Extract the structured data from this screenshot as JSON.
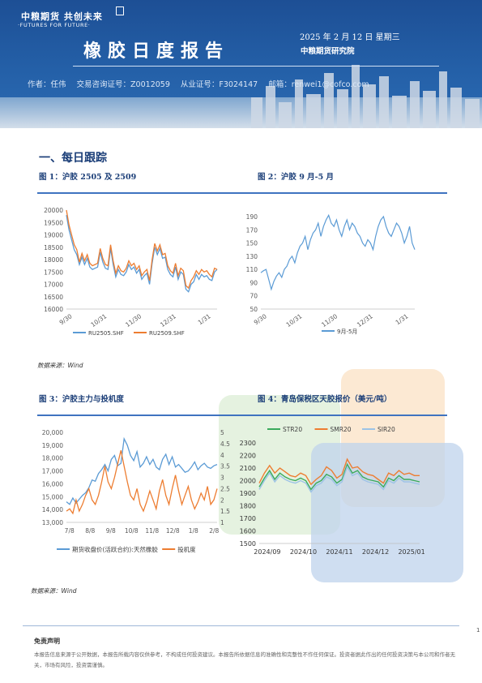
{
  "header": {
    "logo_cn": "中粮期货 共创未来",
    "logo_en": "·FUTURES FOR FUTURE·",
    "title": "橡胶日度报告",
    "date": "2025 年 2 月 12 日 星期三",
    "org": "中粮期货研究院",
    "author_label": "作者：任伟",
    "license1": "交易咨询证号：Z0012059",
    "license2": "从业证号：F3024147",
    "email": "邮箱：renwei1@cofco.com"
  },
  "section": {
    "title": "一、每日跟踪"
  },
  "figures": {
    "fig1": {
      "caption": "图 1：沪胶 2505 及 2509"
    },
    "fig2": {
      "caption": "图 2：沪胶 9 月-5 月"
    },
    "fig3": {
      "caption": "图 3：沪胶主力与投机度"
    },
    "fig4": {
      "caption": "图 4：青岛保税区天胶报价（美元/吨）"
    },
    "source1": "数据来源：Wind",
    "source2": "数据来源：Wind"
  },
  "chart_data": [
    {
      "type": "line",
      "id": "fig1",
      "x_ticks": [
        "9/30",
        "10/31",
        "11/30",
        "12/31",
        "1/31"
      ],
      "ylim": [
        16000,
        20000
      ],
      "y_ticks": [
        16000,
        16500,
        17000,
        17500,
        18000,
        18500,
        19000,
        19500,
        20000
      ],
      "legend_position": "bottom",
      "series": [
        {
          "name": "RU2505.SHF",
          "color": "#5b9bd5",
          "values": [
            19800,
            19200,
            18800,
            18400,
            18200,
            17800,
            18100,
            17800,
            18050,
            17700,
            17600,
            17650,
            17700,
            18300,
            17900,
            17650,
            17600,
            18450,
            17800,
            17300,
            17600,
            17400,
            17350,
            17500,
            17800,
            17600,
            17700,
            17450,
            17600,
            17200,
            17350,
            17450,
            17000,
            17850,
            18500,
            18200,
            18450,
            18050,
            18100,
            17600,
            17400,
            17300,
            17700,
            17200,
            17500,
            17400,
            16800,
            16700,
            17000,
            17100,
            17400,
            17200,
            17400,
            17300,
            17350,
            17200,
            17150,
            17500,
            17600
          ]
        },
        {
          "name": "RU2509.SHF",
          "color": "#ed7d31",
          "values": [
            20000,
            19400,
            19000,
            18600,
            18400,
            17900,
            18250,
            17950,
            18200,
            17850,
            17750,
            17800,
            17850,
            18450,
            18050,
            17800,
            17750,
            18600,
            17950,
            17450,
            17750,
            17550,
            17500,
            17650,
            17950,
            17750,
            17850,
            17600,
            17750,
            17350,
            17500,
            17600,
            17150,
            18000,
            18650,
            18350,
            18600,
            18200,
            18250,
            17750,
            17550,
            17450,
            17850,
            17350,
            17650,
            17550,
            16950,
            16850,
            17150,
            17300,
            17550,
            17400,
            17600,
            17500,
            17550,
            17400,
            17300,
            17650,
            17600
          ]
        }
      ]
    },
    {
      "type": "line",
      "id": "fig2",
      "x_ticks": [
        "9/30",
        "10/31",
        "11/30",
        "12/31",
        "1/31"
      ],
      "ylim": [
        50,
        190
      ],
      "y_ticks": [
        50,
        70,
        90,
        110,
        130,
        150,
        170,
        190
      ],
      "legend_position": "bottom",
      "series": [
        {
          "name": "9月-5月",
          "color": "#5b9bd5",
          "values": [
            105,
            108,
            110,
            95,
            80,
            92,
            100,
            105,
            98,
            110,
            115,
            125,
            130,
            120,
            135,
            145,
            150,
            160,
            140,
            155,
            165,
            170,
            180,
            160,
            175,
            185,
            192,
            180,
            175,
            185,
            170,
            160,
            175,
            185,
            170,
            180,
            175,
            165,
            160,
            150,
            145,
            155,
            150,
            140,
            160,
            175,
            185,
            190,
            175,
            165,
            160,
            170,
            180,
            175,
            165,
            150,
            160,
            175,
            150,
            140
          ]
        }
      ]
    },
    {
      "type": "line",
      "id": "fig3",
      "x_ticks": [
        "7/8",
        "8/8",
        "9/8",
        "10/8",
        "11/8",
        "12/8",
        "1/8",
        "2/8"
      ],
      "ylim": [
        13000,
        20000
      ],
      "y_ticks": [
        13000,
        14000,
        15000,
        16000,
        17000,
        18000,
        19000,
        20000
      ],
      "ylim_right": [
        1,
        5
      ],
      "y_ticks_right": [
        1,
        1.5,
        2,
        2.5,
        3,
        3.5,
        4,
        4.5,
        5
      ],
      "legend_position": "bottom",
      "series": [
        {
          "name": "期货收盘价(活跃合约):天然橡胶",
          "color": "#5b9bd5",
          "axis": "left",
          "values": [
            14600,
            14400,
            14900,
            14500,
            14800,
            15100,
            15300,
            15700,
            16300,
            16200,
            16800,
            17100,
            17500,
            17000,
            17900,
            18200,
            17400,
            17600,
            19500,
            19000,
            18200,
            17800,
            18500,
            17300,
            17600,
            18100,
            17500,
            17900,
            17300,
            17100,
            17900,
            18300,
            17500,
            18100,
            17300,
            17500,
            17200,
            16900,
            17000,
            17300,
            17700,
            17100,
            17400,
            17600,
            17300,
            17200,
            17400,
            17500
          ]
        },
        {
          "name": "投机度",
          "color": "#ed7d31",
          "axis": "right",
          "values": [
            1.5,
            1.6,
            1.4,
            2.0,
            1.5,
            1.8,
            2.2,
            2.5,
            2.0,
            1.8,
            2.2,
            2.8,
            3.5,
            2.8,
            2.5,
            3.0,
            3.6,
            4.2,
            3.5,
            2.8,
            2.2,
            2.0,
            2.5,
            1.8,
            1.5,
            1.9,
            2.4,
            2.0,
            1.6,
            2.4,
            2.9,
            2.2,
            1.8,
            2.5,
            3.1,
            2.4,
            1.8,
            2.2,
            2.6,
            2.0,
            1.6,
            1.9,
            2.3,
            2.0,
            2.6,
            1.8,
            2.0,
            2.5
          ]
        }
      ]
    },
    {
      "type": "line",
      "id": "fig4",
      "x_ticks": [
        "2024/09",
        "2024/10",
        "2024/11",
        "2024/12",
        "2025/01"
      ],
      "ylim": [
        1500,
        2300
      ],
      "y_ticks": [
        1500,
        1600,
        1700,
        1800,
        1900,
        2000,
        2100,
        2200,
        2300
      ],
      "legend_position": "top",
      "series": [
        {
          "name": "STR20",
          "color": "#3aaa5c",
          "values": [
            1950,
            2020,
            2080,
            2010,
            2060,
            2030,
            2010,
            2000,
            2020,
            2000,
            1930,
            1980,
            2000,
            2050,
            2030,
            1980,
            2010,
            2130,
            2060,
            2080,
            2030,
            2010,
            2000,
            1990,
            1950,
            2020,
            2000,
            2040,
            2010,
            2010,
            2000,
            1990
          ]
        },
        {
          "name": "SMR20",
          "color": "#ed7d31",
          "values": [
            1980,
            2060,
            2120,
            2060,
            2100,
            2070,
            2040,
            2030,
            2060,
            2040,
            1970,
            2010,
            2040,
            2110,
            2080,
            2020,
            2050,
            2170,
            2100,
            2110,
            2070,
            2050,
            2040,
            2010,
            1980,
            2060,
            2040,
            2080,
            2050,
            2060,
            2040,
            2040
          ]
        },
        {
          "name": "SIR20",
          "color": "#9dc3e6",
          "values": [
            1930,
            2000,
            2060,
            1990,
            2040,
            2010,
            1990,
            1980,
            2000,
            1980,
            1910,
            1960,
            1980,
            2030,
            2010,
            1960,
            1990,
            2110,
            2040,
            2060,
            2010,
            1990,
            1980,
            1970,
            1930,
            2000,
            1980,
            2020,
            1990,
            1990,
            1980,
            1970
          ]
        }
      ]
    }
  ],
  "footer": {
    "page": "1",
    "disclaimer_title": "免责声明",
    "disclaimer_text": "本报告信息来源于公开数据，本报告所载内容仅供参考，不构成任何投资建议。本报告所依据信息的准确性和完整性不作任何保证。投资者据此作出的任何投资决策与本公司和作者无关，市场有风险，投资需谨慎。"
  }
}
